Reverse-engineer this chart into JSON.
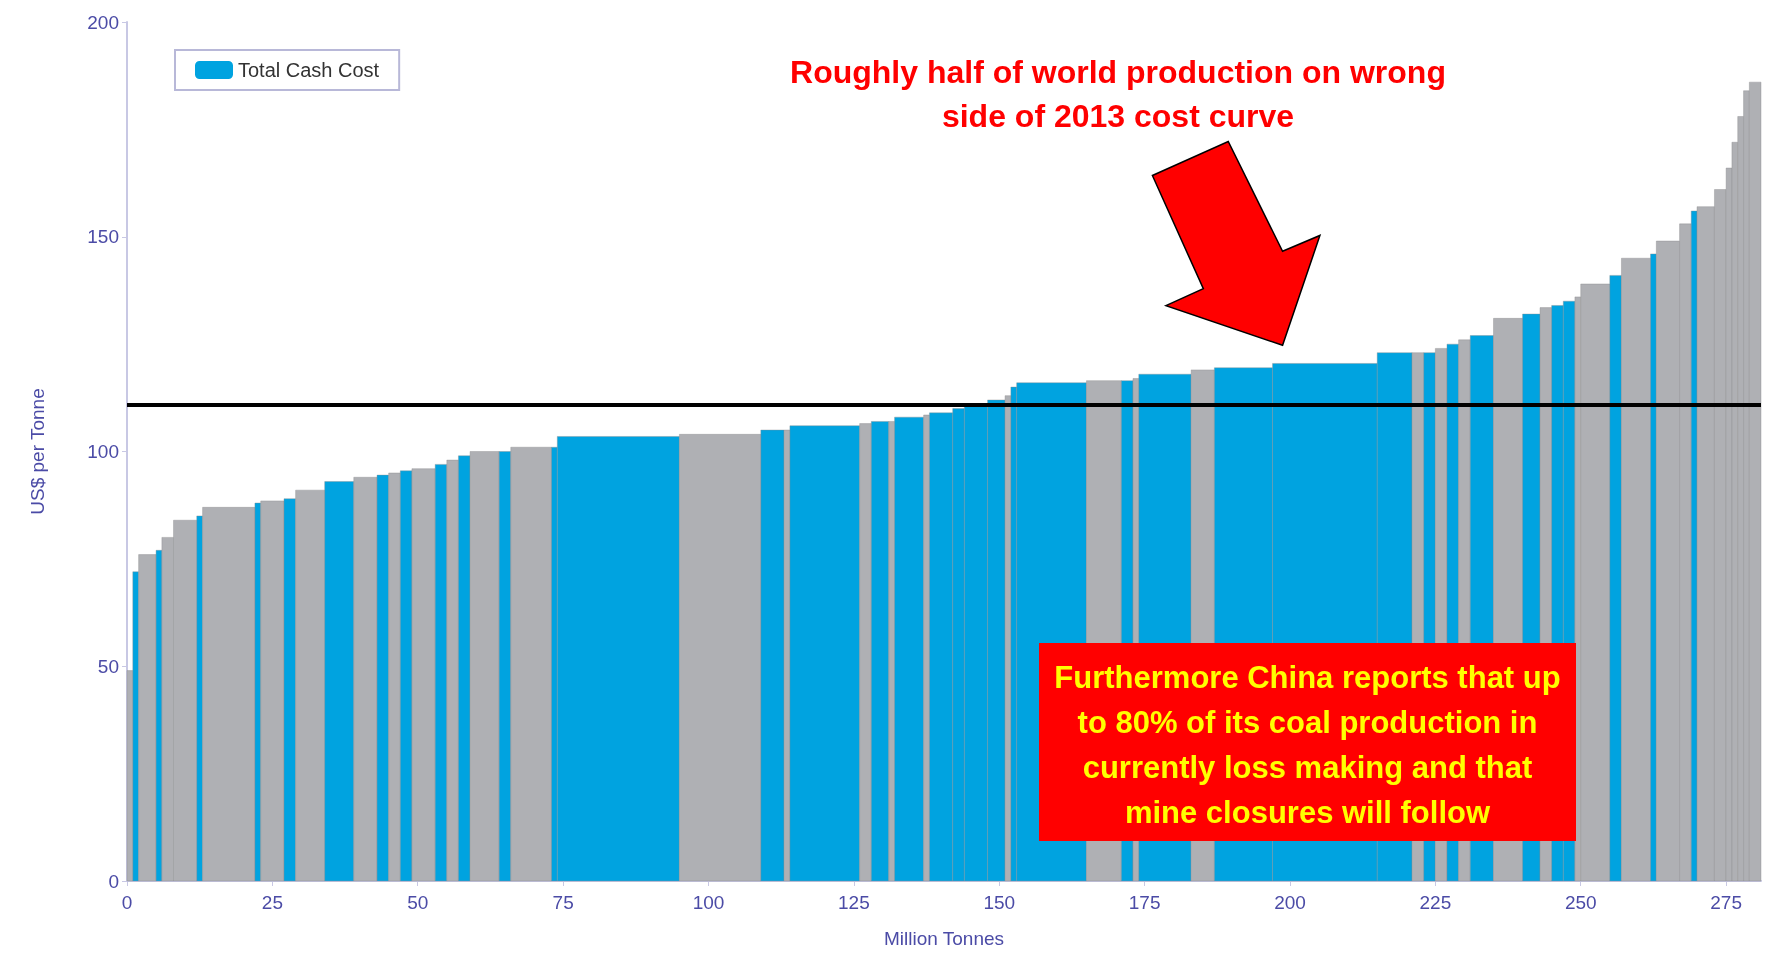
{
  "chart_data": {
    "type": "histogram",
    "xlabel": "Million Tonnes",
    "ylabel": "US$ per Tonne",
    "bins": [
      0,
      1,
      2,
      5,
      6,
      8,
      12,
      13,
      22,
      23,
      27,
      29,
      34,
      39,
      43,
      45,
      47,
      49,
      53,
      55,
      57,
      59,
      64,
      66,
      73,
      74,
      95,
      109,
      113,
      114,
      126,
      128,
      131,
      132,
      137,
      138,
      142,
      144,
      148,
      151,
      152,
      153,
      165,
      171,
      173,
      174,
      183,
      187,
      197,
      215,
      221,
      223,
      225,
      227,
      229,
      231,
      235,
      240,
      243,
      245,
      247,
      249,
      250,
      255,
      257,
      262,
      263,
      267,
      269,
      270,
      273,
      275,
      276,
      277,
      278,
      279,
      281
    ],
    "series": [
      {
        "name": "Total Cash Cost",
        "color": "#00a3e0",
        "values": [
          49,
          72,
          76,
          77,
          80,
          84,
          85,
          87,
          88,
          88.5,
          89,
          91,
          93,
          94,
          94.5,
          95,
          95.5,
          96,
          97,
          98,
          99,
          100,
          100,
          101,
          101,
          103.5,
          104,
          105,
          105,
          106,
          106.5,
          107,
          107,
          108,
          108.5,
          109,
          110,
          111,
          112,
          113,
          115,
          116,
          116.5,
          116.5,
          117,
          118,
          119,
          119.5,
          120.5,
          123,
          123,
          123,
          124,
          125,
          126,
          127,
          131,
          132,
          133.5,
          134,
          135,
          136,
          139,
          141,
          145,
          146,
          149,
          153,
          156,
          157,
          161,
          166,
          172,
          178,
          184,
          186
        ],
        "colors": [
          "#afb0b4",
          "#00a3e0",
          "#afb0b4",
          "#00a3e0",
          "#afb0b4",
          "#afb0b4",
          "#00a3e0",
          "#afb0b4",
          "#00a3e0",
          "#afb0b4",
          "#00a3e0",
          "#afb0b4",
          "#00a3e0",
          "#afb0b4",
          "#00a3e0",
          "#afb0b4",
          "#00a3e0",
          "#afb0b4",
          "#00a3e0",
          "#afb0b4",
          "#00a3e0",
          "#afb0b4",
          "#00a3e0",
          "#afb0b4",
          "#00a3e0",
          "#00a3e0",
          "#afb0b4",
          "#00a3e0",
          "#afb0b4",
          "#00a3e0",
          "#afb0b4",
          "#00a3e0",
          "#afb0b4",
          "#00a3e0",
          "#afb0b4",
          "#00a3e0",
          "#00a3e0",
          "#00a3e0",
          "#00a3e0",
          "#afb0b4",
          "#00a3e0",
          "#00a3e0",
          "#afb0b4",
          "#00a3e0",
          "#afb0b4",
          "#00a3e0",
          "#afb0b4",
          "#00a3e0",
          "#00a3e0",
          "#00a3e0",
          "#afb0b4",
          "#00a3e0",
          "#afb0b4",
          "#00a3e0",
          "#afb0b4",
          "#00a3e0",
          "#afb0b4",
          "#00a3e0",
          "#afb0b4",
          "#00a3e0",
          "#00a3e0",
          "#afb0b4",
          "#afb0b4",
          "#00a3e0",
          "#afb0b4",
          "#00a3e0",
          "#afb0b4",
          "#afb0b4",
          "#00a3e0",
          "#afb0b4",
          "#afb0b4",
          "#afb0b4",
          "#afb0b4",
          "#afb0b4",
          "#afb0b4",
          "#afb0b4"
        ]
      }
    ],
    "xlim": [
      0,
      281
    ],
    "xticks": [
      0,
      25,
      50,
      75,
      100,
      125,
      150,
      175,
      200,
      225,
      250,
      275
    ],
    "ylim": [
      0,
      200
    ],
    "yticks": [
      0,
      50,
      100,
      150,
      200
    ],
    "grid": false,
    "legend": "top left",
    "ref_lines": [
      {
        "axis": "y",
        "value": 111,
        "color": "#000000"
      }
    ],
    "annotations": [
      "Roughly half of world production on wrong side of 2013 cost curve",
      "Furthermore China reports that up to 80% of its coal production in currently loss making and that mine closures will follow"
    ]
  }
}
